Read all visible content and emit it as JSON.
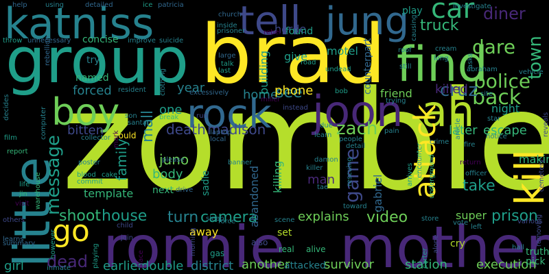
{
  "background": "#000000",
  "palette": {
    "yellow": "#fde725",
    "lime": "#b5de2b",
    "green": "#6ece58",
    "emerald": "#35b779",
    "teal": "#1f9e89",
    "cyan": "#26828e",
    "blue": "#31688e",
    "indigo": "#3e4989",
    "purple": "#482878",
    "dark": "#440154"
  },
  "words": [
    {
      "text": "zombie",
      "color": "lime"
    },
    {
      "text": "brad",
      "color": "yellow"
    },
    {
      "text": "group",
      "color": "teal"
    },
    {
      "text": "ronnie",
      "color": "purple"
    },
    {
      "text": "mother",
      "color": "purple"
    },
    {
      "text": "little",
      "color": "cyan"
    },
    {
      "text": "katniss",
      "color": "cyan"
    },
    {
      "text": "find",
      "color": "green"
    },
    {
      "text": "tell",
      "color": "indigo"
    },
    {
      "text": "jung",
      "color": "blue"
    },
    {
      "text": "rock",
      "color": "blue"
    },
    {
      "text": "boy",
      "color": "green"
    },
    {
      "text": "joon",
      "color": "purple"
    },
    {
      "text": "ah",
      "color": "lime"
    },
    {
      "text": "kill",
      "color": "yellow"
    },
    {
      "text": "attack",
      "color": "yellow"
    },
    {
      "text": "car",
      "color": "emerald"
    },
    {
      "text": "go",
      "color": "yellow"
    },
    {
      "text": "back",
      "color": "green"
    },
    {
      "text": "police",
      "color": "green"
    },
    {
      "text": "dare",
      "color": "green"
    },
    {
      "text": "diner",
      "color": "purple"
    },
    {
      "text": "truck",
      "color": "emerald"
    },
    {
      "text": "town",
      "color": "emerald"
    },
    {
      "text": "cruz",
      "color": "blue"
    },
    {
      "text": "zach",
      "color": "green"
    },
    {
      "text": "game",
      "color": "indigo"
    },
    {
      "text": "message",
      "color": "teal"
    },
    {
      "text": "dead",
      "color": "purple"
    },
    {
      "text": "shoot",
      "color": "emerald"
    },
    {
      "text": "house",
      "color": "teal"
    },
    {
      "text": "turn",
      "color": "cyan"
    },
    {
      "text": "camera",
      "color": "teal"
    },
    {
      "text": "video",
      "color": "green"
    },
    {
      "text": "prison",
      "color": "teal"
    },
    {
      "text": "take",
      "color": "teal"
    },
    {
      "text": "see",
      "color": "cyan"
    },
    {
      "text": "mall",
      "color": "cyan"
    },
    {
      "text": "family",
      "color": "teal"
    },
    {
      "text": "juno",
      "color": "green"
    },
    {
      "text": "death",
      "color": "indigo"
    },
    {
      "text": "madison",
      "color": "indigo"
    },
    {
      "text": "bitten",
      "color": "indigo"
    },
    {
      "text": "forced",
      "color": "cyan"
    },
    {
      "text": "year",
      "color": "cyan"
    },
    {
      "text": "home",
      "color": "cyan"
    },
    {
      "text": "phone",
      "color": "yellow"
    },
    {
      "text": "explains",
      "color": "green"
    },
    {
      "text": "another",
      "color": "green"
    },
    {
      "text": "survivor",
      "color": "green"
    },
    {
      "text": "station",
      "color": "emerald"
    },
    {
      "text": "execution",
      "color": "green"
    },
    {
      "text": "earlier",
      "color": "teal"
    },
    {
      "text": "double",
      "color": "teal"
    },
    {
      "text": "district",
      "color": "cyan"
    },
    {
      "text": "attacked",
      "color": "cyan"
    },
    {
      "text": "killed",
      "color": "purple"
    },
    {
      "text": "escape",
      "color": "emerald"
    },
    {
      "text": "later",
      "color": "emerald"
    },
    {
      "text": "night",
      "color": "teal"
    },
    {
      "text": "making",
      "color": "emerald"
    },
    {
      "text": "super",
      "color": "green"
    },
    {
      "text": "friend",
      "color": "green"
    },
    {
      "text": "counterpart",
      "color": "blue"
    },
    {
      "text": "horde",
      "color": "indigo"
    },
    {
      "text": "motel",
      "color": "teal"
    },
    {
      "text": "found",
      "color": "teal"
    },
    {
      "text": "give",
      "color": "teal"
    },
    {
      "text": "building",
      "color": "teal"
    },
    {
      "text": "concise",
      "color": "emerald"
    },
    {
      "text": "named",
      "color": "emerald"
    },
    {
      "text": "try",
      "color": "cyan"
    },
    {
      "text": "one",
      "color": "teal"
    },
    {
      "text": "body",
      "color": "emerald"
    },
    {
      "text": "next",
      "color": "emerald"
    },
    {
      "text": "template",
      "color": "emerald"
    },
    {
      "text": "man",
      "color": "purple"
    },
    {
      "text": "killing",
      "color": "emerald"
    },
    {
      "text": "abandoned",
      "color": "blue"
    },
    {
      "text": "sadie",
      "color": "teal"
    },
    {
      "text": "gabriel",
      "color": "blue"
    },
    {
      "text": "away",
      "color": "yellow"
    },
    {
      "text": "set",
      "color": "lime"
    },
    {
      "text": "cry",
      "color": "lime"
    },
    {
      "text": "alive",
      "color": "emerald"
    },
    {
      "text": "real",
      "color": "emerald"
    },
    {
      "text": "truth",
      "color": "emerald"
    },
    {
      "text": "pick",
      "color": "emerald"
    },
    {
      "text": "play",
      "color": "teal"
    },
    {
      "text": "girl",
      "color": "teal"
    },
    {
      "text": "using",
      "color": "cyan"
    },
    {
      "text": "detailed",
      "color": "blue"
    },
    {
      "text": "ice",
      "color": "teal"
    },
    {
      "text": "patricia",
      "color": "blue"
    },
    {
      "text": "help",
      "color": "blue"
    },
    {
      "text": "could",
      "color": "yellow"
    },
    {
      "text": "mark",
      "color": "dark"
    },
    {
      "text": "drive",
      "color": "blue"
    },
    {
      "text": "please",
      "color": "blue"
    },
    {
      "text": "cake",
      "color": "teal"
    },
    {
      "text": "blood",
      "color": "teal"
    },
    {
      "text": "commit",
      "color": "teal"
    },
    {
      "text": "life",
      "color": "teal"
    },
    {
      "text": "jin",
      "color": "emerald"
    },
    {
      "text": "report",
      "color": "emerald"
    },
    {
      "text": "warehouse",
      "color": "emerald"
    },
    {
      "text": "visit",
      "color": "dark"
    },
    {
      "text": "others",
      "color": "indigo"
    },
    {
      "text": "learns",
      "color": "blue"
    },
    {
      "text": "summary",
      "color": "blue"
    },
    {
      "text": "film",
      "color": "teal"
    },
    {
      "text": "decides",
      "color": "cyan"
    },
    {
      "text": "throw",
      "color": "teal"
    },
    {
      "text": "unnecessary",
      "color": "blue"
    },
    {
      "text": "rebellion",
      "color": "blue"
    },
    {
      "text": "computer",
      "color": "cyan"
    },
    {
      "text": "improve",
      "color": "cyan"
    },
    {
      "text": "suicide",
      "color": "cyan"
    },
    {
      "text": "clothing",
      "color": "cyan"
    },
    {
      "text": "resident",
      "color": "cyan"
    },
    {
      "text": "santa",
      "color": "cyan"
    },
    {
      "text": "son",
      "color": "cyan"
    },
    {
      "text": "collector",
      "color": "cyan"
    },
    {
      "text": "break",
      "color": "emerald"
    },
    {
      "text": "run",
      "color": "indigo"
    },
    {
      "text": "laptop",
      "color": "blue"
    },
    {
      "text": "local",
      "color": "blue"
    },
    {
      "text": "church",
      "color": "blue"
    },
    {
      "text": "inside",
      "color": "cyan"
    },
    {
      "text": "prisoner",
      "color": "cyan"
    },
    {
      "text": "rebel",
      "color": "dark"
    },
    {
      "text": "large",
      "color": "blue"
    },
    {
      "text": "talk",
      "color": "teal"
    },
    {
      "text": "last",
      "color": "teal"
    },
    {
      "text": "excessively",
      "color": "blue"
    },
    {
      "text": "undead",
      "color": "teal"
    },
    {
      "text": "road",
      "color": "teal"
    },
    {
      "text": "bob",
      "color": "teal"
    },
    {
      "text": "miller",
      "color": "dark"
    },
    {
      "text": "instead",
      "color": "indigo"
    },
    {
      "text": "due",
      "color": "cyan"
    },
    {
      "text": "learn",
      "color": "cyan"
    },
    {
      "text": "people",
      "color": "cyan"
    },
    {
      "text": "detail",
      "color": "cyan"
    },
    {
      "text": "damon",
      "color": "cyan"
    },
    {
      "text": "killer",
      "color": "cyan"
    },
    {
      "text": "tae",
      "color": "cyan"
    },
    {
      "text": "banner",
      "color": "cyan"
    },
    {
      "text": "rescuing",
      "color": "cyan"
    },
    {
      "text": "toward",
      "color": "cyan"
    },
    {
      "text": "scene",
      "color": "cyan"
    },
    {
      "text": "force",
      "color": "cyan"
    },
    {
      "text": "sleep",
      "color": "cyan"
    },
    {
      "text": "gas",
      "color": "teal"
    },
    {
      "text": "also",
      "color": "indigo"
    },
    {
      "text": "morning",
      "color": "indigo"
    },
    {
      "text": "join",
      "color": "indigo"
    },
    {
      "text": "place",
      "color": "dark"
    },
    {
      "text": "child",
      "color": "indigo"
    },
    {
      "text": "poster",
      "color": "cyan"
    },
    {
      "text": "however",
      "color": "teal"
    },
    {
      "text": "playing",
      "color": "teal"
    },
    {
      "text": "inmate",
      "color": "cyan"
    },
    {
      "text": "carter",
      "color": "teal"
    },
    {
      "text": "alone",
      "color": "indigo"
    },
    {
      "text": "arrives",
      "color": "teal"
    },
    {
      "text": "encounter",
      "color": "teal"
    },
    {
      "text": "underground",
      "color": "emerald"
    },
    {
      "text": "crime",
      "color": "cyan"
    },
    {
      "text": "notice",
      "color": "cyan"
    },
    {
      "text": "fire",
      "color": "cyan"
    },
    {
      "text": "article",
      "color": "cyan"
    },
    {
      "text": "star",
      "color": "cyan"
    },
    {
      "text": "site",
      "color": "cyan"
    },
    {
      "text": "hall",
      "color": "cyan"
    },
    {
      "text": "store",
      "color": "cyan"
    },
    {
      "text": "vote",
      "color": "cyan"
    },
    {
      "text": "various",
      "color": "indigo"
    },
    {
      "text": "removing",
      "color": "indigo"
    },
    {
      "text": "cemetery",
      "color": "indigo"
    },
    {
      "text": "reveals",
      "color": "indigo"
    },
    {
      "text": "officer",
      "color": "cyan"
    },
    {
      "text": "return",
      "color": "dark"
    },
    {
      "text": "left",
      "color": "cyan"
    },
    {
      "text": "pain",
      "color": "cyan"
    },
    {
      "text": "trying",
      "color": "cyan"
    },
    {
      "text": "still",
      "color": "cyan"
    },
    {
      "text": "roof",
      "color": "cyan"
    },
    {
      "text": "causing",
      "color": "cyan"
    },
    {
      "text": "cream",
      "color": "cyan"
    },
    {
      "text": "long",
      "color": "cyan"
    },
    {
      "text": "asks",
      "color": "cyan"
    },
    {
      "text": "investigate",
      "color": "cyan"
    },
    {
      "text": "abraham",
      "color": "cyan"
    },
    {
      "text": "vehicle",
      "color": "cyan"
    }
  ]
}
